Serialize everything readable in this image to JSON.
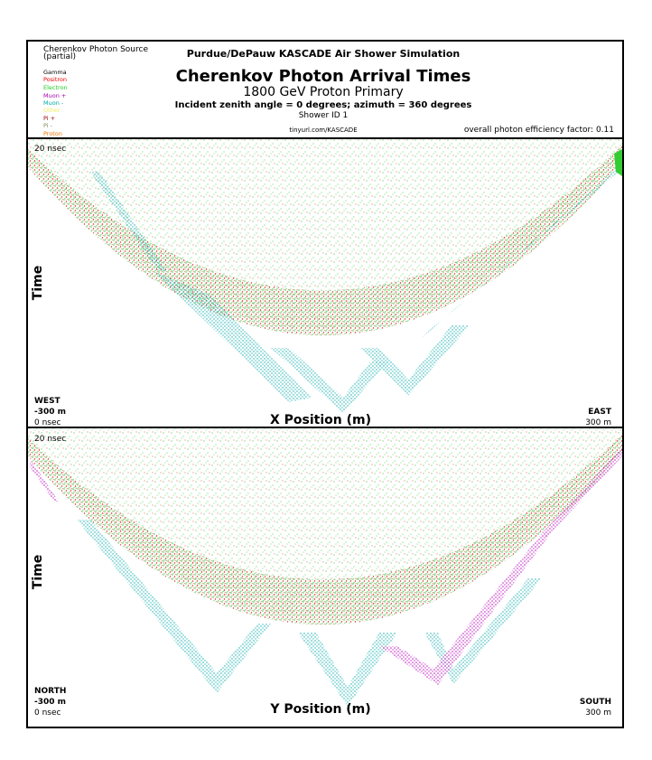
{
  "header": {
    "source_title": "Cherenkov Photon Source",
    "source_subtitle": "(partial)",
    "legend": [
      "Gamma",
      "Positron",
      "Electron",
      "Muon +",
      "Muon -",
      "Other",
      "Pi +",
      "Pi -",
      "Proton"
    ],
    "simulation": "Purdue/DePauw KASCADE Air Shower Simulation",
    "title": "Cherenkov Photon Arrival Times",
    "primary": "1800 GeV Proton Primary",
    "incident": "Incident zenith angle =  0 degrees;  azimuth =  360 degrees",
    "shower_id": "Shower ID 1",
    "url": "tinyurl.com/KASCADE",
    "efficiency": "overall photon efficiency factor: 0.11"
  },
  "panels": [
    {
      "time_top": "20 nsec",
      "y_axis": "Time",
      "x_axis": "X Position (m)",
      "left_dir": "WEST",
      "left_pos": "-300 m",
      "left_time": "0 nsec",
      "right_dir": "EAST",
      "right_pos": "300 m"
    },
    {
      "time_top": "20 nsec",
      "y_axis": "Time",
      "x_axis": "Y Position (m)",
      "left_dir": "NORTH",
      "left_pos": "-300 m",
      "left_time": "0 nsec",
      "right_dir": "SOUTH",
      "right_pos": "300 m"
    }
  ]
}
